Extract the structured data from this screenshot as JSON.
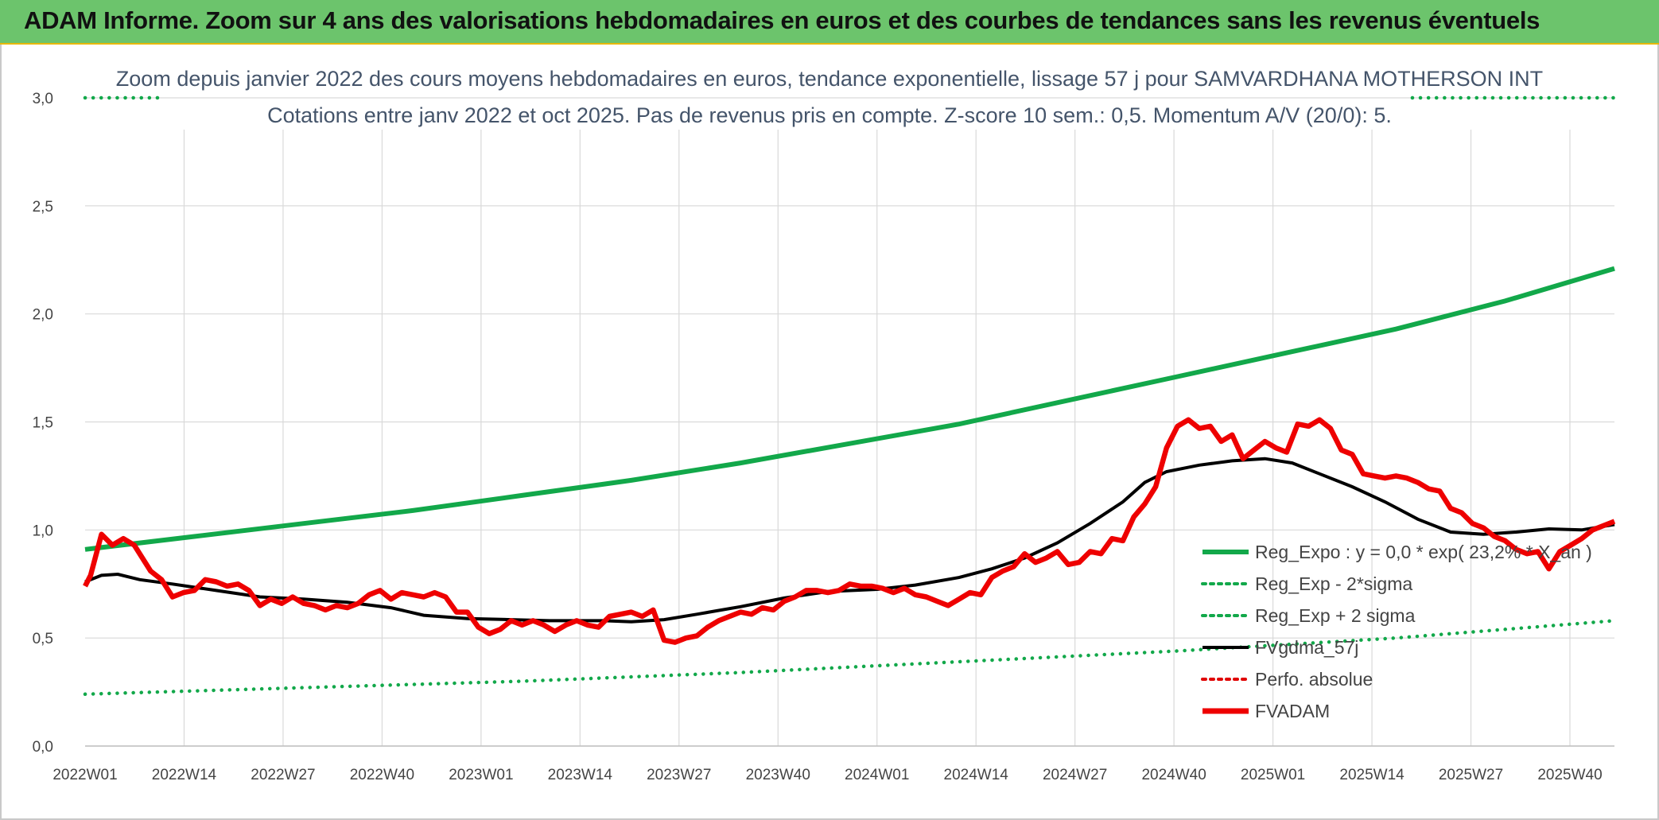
{
  "banner": {
    "title": "ADAM Informe. Zoom sur 4 ans des valorisations hebdomadaires en euros et des courbes de tendances sans les revenus éventuels"
  },
  "colors": {
    "banner": "#6cc46c",
    "reg_expo": "#12a84a",
    "fvgdma": "#000000",
    "perfo": "#e00000",
    "fvadam": "#ee0000",
    "grid": "#d9d9d9"
  },
  "chart_data": {
    "type": "line",
    "title": "Zoom depuis janvier 2022 des cours moyens hebdomadaires en euros, tendance exponentielle, lissage 57 j pour SAMVARDHANA MOTHERSON INT",
    "subtitle": "Cotations entre janv 2022 et oct 2025. Pas de revenus pris en compte. Z-score 10 sem.: 0,5. Momentum A/V (20/0): 5.",
    "x_ticks": [
      "2022W01",
      "2022W14",
      "2022W27",
      "2022W40",
      "2023W01",
      "2023W14",
      "2023W27",
      "2023W40",
      "2024W01",
      "2024W14",
      "2024W27",
      "2024W40",
      "2025W01",
      "2025W14",
      "2025W27",
      "2025W40"
    ],
    "y_ticks": [
      "0,0",
      "0,5",
      "1,0",
      "1,5",
      "2,0",
      "2,5",
      "3,0"
    ],
    "ylim": [
      0,
      3
    ],
    "x_range_weeks": [
      0,
      200
    ],
    "grid": true,
    "legend_position": "bottom-right",
    "series": [
      {
        "name": "Reg_Expo : y = 0,0 * exp( 23,2% * X_an )",
        "style": "solid",
        "points": [
          [
            0,
            0.91
          ],
          [
            20,
            0.97
          ],
          [
            40,
            1.03
          ],
          [
            60,
            1.09
          ],
          [
            80,
            1.16
          ],
          [
            100,
            1.23
          ],
          [
            120,
            1.31
          ],
          [
            140,
            1.4
          ],
          [
            160,
            1.49
          ],
          [
            180,
            1.6
          ],
          [
            200,
            1.71
          ],
          [
            220,
            1.82
          ],
          [
            240,
            1.93
          ],
          [
            260,
            2.06
          ],
          [
            280,
            2.21
          ]
        ]
      },
      {
        "name": "Reg_Exp - 2*sigma",
        "style": "dotted",
        "points": [
          [
            0,
            0.24
          ],
          [
            40,
            0.27
          ],
          [
            80,
            0.3
          ],
          [
            120,
            0.34
          ],
          [
            160,
            0.39
          ],
          [
            200,
            0.44
          ],
          [
            240,
            0.5
          ],
          [
            280,
            0.58
          ]
        ]
      },
      {
        "name": "Reg_Exp + 2 sigma",
        "style": "dotted",
        "points": [
          [
            0,
            3.0
          ],
          [
            14,
            3.0
          ]
        ],
        "points_b": [
          [
            243,
            3.0
          ],
          [
            280,
            3.0
          ]
        ]
      },
      {
        "name": "FVgdma_57j",
        "style": "solid-thin",
        "points": [
          [
            0,
            0.76
          ],
          [
            3,
            0.79
          ],
          [
            6,
            0.795
          ],
          [
            10,
            0.77
          ],
          [
            16,
            0.75
          ],
          [
            24,
            0.72
          ],
          [
            32,
            0.69
          ],
          [
            40,
            0.68
          ],
          [
            48,
            0.665
          ],
          [
            56,
            0.64
          ],
          [
            62,
            0.605
          ],
          [
            70,
            0.59
          ],
          [
            78,
            0.585
          ],
          [
            85,
            0.58
          ],
          [
            95,
            0.58
          ],
          [
            100,
            0.575
          ],
          [
            106,
            0.585
          ],
          [
            112,
            0.61
          ],
          [
            120,
            0.645
          ],
          [
            128,
            0.685
          ],
          [
            136,
            0.715
          ],
          [
            145,
            0.725
          ],
          [
            152,
            0.745
          ],
          [
            160,
            0.78
          ],
          [
            166,
            0.82
          ],
          [
            172,
            0.87
          ],
          [
            178,
            0.94
          ],
          [
            184,
            1.03
          ],
          [
            190,
            1.13
          ],
          [
            194,
            1.22
          ],
          [
            198,
            1.27
          ],
          [
            204,
            1.3
          ],
          [
            210,
            1.32
          ],
          [
            216,
            1.33
          ],
          [
            221,
            1.31
          ],
          [
            226,
            1.26
          ],
          [
            232,
            1.2
          ],
          [
            238,
            1.13
          ],
          [
            244,
            1.05
          ],
          [
            250,
            0.99
          ],
          [
            256,
            0.98
          ],
          [
            262,
            0.99
          ],
          [
            268,
            1.005
          ],
          [
            274,
            1.0
          ],
          [
            280,
            1.025
          ]
        ]
      },
      {
        "name": "Perfo. absolue",
        "style": "dotted-red",
        "points": []
      },
      {
        "name": "FVADAM",
        "style": "solid-thick",
        "points": [
          [
            0,
            0.74
          ],
          [
            1,
            0.79
          ],
          [
            3,
            0.98
          ],
          [
            5,
            0.93
          ],
          [
            7,
            0.96
          ],
          [
            9,
            0.93
          ],
          [
            12,
            0.81
          ],
          [
            14,
            0.77
          ],
          [
            16,
            0.69
          ],
          [
            18,
            0.71
          ],
          [
            20,
            0.72
          ],
          [
            22,
            0.77
          ],
          [
            24,
            0.76
          ],
          [
            26,
            0.74
          ],
          [
            28,
            0.75
          ],
          [
            30,
            0.72
          ],
          [
            32,
            0.65
          ],
          [
            34,
            0.68
          ],
          [
            36,
            0.66
          ],
          [
            38,
            0.69
          ],
          [
            40,
            0.66
          ],
          [
            42,
            0.65
          ],
          [
            44,
            0.63
          ],
          [
            46,
            0.65
          ],
          [
            48,
            0.64
          ],
          [
            50,
            0.66
          ],
          [
            52,
            0.7
          ],
          [
            54,
            0.72
          ],
          [
            56,
            0.68
          ],
          [
            58,
            0.71
          ],
          [
            60,
            0.7
          ],
          [
            62,
            0.69
          ],
          [
            64,
            0.71
          ],
          [
            66,
            0.69
          ],
          [
            68,
            0.62
          ],
          [
            70,
            0.62
          ],
          [
            72,
            0.55
          ],
          [
            74,
            0.52
          ],
          [
            76,
            0.54
          ],
          [
            78,
            0.58
          ],
          [
            80,
            0.56
          ],
          [
            82,
            0.58
          ],
          [
            84,
            0.56
          ],
          [
            86,
            0.53
          ],
          [
            88,
            0.56
          ],
          [
            90,
            0.58
          ],
          [
            92,
            0.56
          ],
          [
            94,
            0.55
          ],
          [
            96,
            0.6
          ],
          [
            98,
            0.61
          ],
          [
            100,
            0.62
          ],
          [
            102,
            0.6
          ],
          [
            104,
            0.63
          ],
          [
            106,
            0.49
          ],
          [
            108,
            0.48
          ],
          [
            110,
            0.5
          ],
          [
            112,
            0.51
          ],
          [
            114,
            0.55
          ],
          [
            116,
            0.58
          ],
          [
            118,
            0.6
          ],
          [
            120,
            0.62
          ],
          [
            122,
            0.61
          ],
          [
            124,
            0.64
          ],
          [
            126,
            0.63
          ],
          [
            128,
            0.67
          ],
          [
            130,
            0.69
          ],
          [
            132,
            0.72
          ],
          [
            134,
            0.72
          ],
          [
            136,
            0.71
          ],
          [
            138,
            0.72
          ],
          [
            140,
            0.75
          ],
          [
            142,
            0.74
          ],
          [
            144,
            0.74
          ],
          [
            146,
            0.73
          ],
          [
            148,
            0.71
          ],
          [
            150,
            0.73
          ],
          [
            152,
            0.7
          ],
          [
            154,
            0.69
          ],
          [
            156,
            0.67
          ],
          [
            158,
            0.65
          ],
          [
            160,
            0.68
          ],
          [
            162,
            0.71
          ],
          [
            164,
            0.7
          ],
          [
            166,
            0.78
          ],
          [
            168,
            0.81
          ],
          [
            170,
            0.83
          ],
          [
            172,
            0.89
          ],
          [
            174,
            0.85
          ],
          [
            176,
            0.87
          ],
          [
            178,
            0.9
          ],
          [
            180,
            0.84
          ],
          [
            182,
            0.85
          ],
          [
            184,
            0.9
          ],
          [
            186,
            0.89
          ],
          [
            188,
            0.96
          ],
          [
            190,
            0.95
          ],
          [
            192,
            1.06
          ],
          [
            194,
            1.12
          ],
          [
            196,
            1.2
          ],
          [
            198,
            1.38
          ],
          [
            200,
            1.48
          ],
          [
            202,
            1.51
          ],
          [
            204,
            1.47
          ],
          [
            206,
            1.48
          ],
          [
            208,
            1.41
          ],
          [
            210,
            1.44
          ],
          [
            212,
            1.33
          ],
          [
            214,
            1.37
          ],
          [
            216,
            1.41
          ],
          [
            218,
            1.38
          ],
          [
            220,
            1.36
          ],
          [
            222,
            1.49
          ],
          [
            224,
            1.48
          ],
          [
            226,
            1.51
          ],
          [
            228,
            1.47
          ],
          [
            230,
            1.37
          ],
          [
            232,
            1.35
          ],
          [
            234,
            1.26
          ],
          [
            236,
            1.25
          ],
          [
            238,
            1.24
          ],
          [
            240,
            1.25
          ],
          [
            242,
            1.24
          ],
          [
            244,
            1.22
          ],
          [
            246,
            1.19
          ],
          [
            248,
            1.18
          ],
          [
            250,
            1.1
          ],
          [
            252,
            1.08
          ],
          [
            254,
            1.03
          ],
          [
            256,
            1.01
          ],
          [
            258,
            0.97
          ],
          [
            260,
            0.95
          ],
          [
            262,
            0.91
          ],
          [
            264,
            0.89
          ],
          [
            266,
            0.9
          ],
          [
            268,
            0.82
          ],
          [
            270,
            0.9
          ],
          [
            272,
            0.93
          ],
          [
            274,
            0.96
          ],
          [
            276,
            1.0
          ],
          [
            278,
            1.02
          ],
          [
            280,
            1.04
          ]
        ]
      }
    ]
  },
  "legend_labels": {
    "l1": "Reg_Expo : y = 0,0 * exp( 23,2% * X_an )",
    "l2": "Reg_Exp - 2*sigma",
    "l3": "Reg_Exp + 2 sigma",
    "l4": "FVgdma_57j",
    "l5": "Perfo. absolue",
    "l6": "FVADAM"
  }
}
